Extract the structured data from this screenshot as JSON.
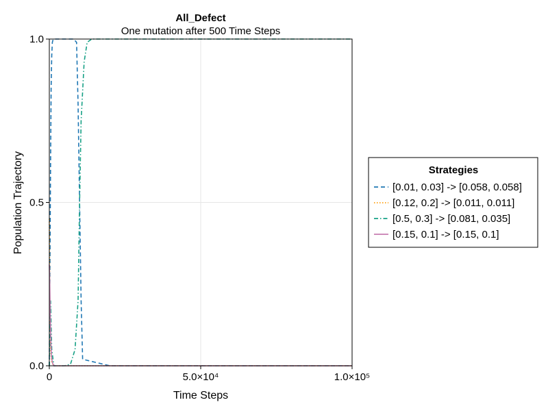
{
  "chart_data": {
    "type": "line",
    "title": "All_Defect",
    "subtitle": "One mutation after 500 Time Steps",
    "xlabel": "Time Steps",
    "ylabel": "Population Trajectory",
    "xlim": [
      0,
      100000
    ],
    "ylim": [
      0,
      1
    ],
    "xticks": [
      {
        "value": 0,
        "label": "0"
      },
      {
        "value": 50000,
        "label": "5.0×10⁴"
      },
      {
        "value": 100000,
        "label": "1.0×10⁵"
      }
    ],
    "yticks": [
      {
        "value": 0,
        "label": "0.0"
      },
      {
        "value": 0.5,
        "label": "0.5"
      },
      {
        "value": 1,
        "label": "1.0"
      }
    ],
    "grid": true,
    "legend": {
      "title": "Strategies",
      "placement": "right",
      "entries": [
        {
          "label": "[0.01, 0.03] -> [0.058, 0.058]",
          "color": "#1f77b4",
          "dash": "dashed"
        },
        {
          "label": "[0.12, 0.2] -> [0.011, 0.011]",
          "color": "#ff9f0e",
          "dash": "dotted"
        },
        {
          "label": "[0.5, 0.3] -> [0.081, 0.035]",
          "color": "#16a085",
          "dash": "dashdot"
        },
        {
          "label": "[0.15, 0.1] -> [0.15, 0.1]",
          "color": "#c77cb0",
          "dash": "solid"
        }
      ]
    },
    "series": [
      {
        "color": "#1f77b4",
        "dash": "dashed",
        "x": [
          0,
          200,
          400,
          600,
          800,
          1000,
          1300,
          1700,
          2200,
          3000,
          5000,
          8000,
          9000,
          9500,
          10000,
          10500,
          11000,
          20000,
          50000,
          100000
        ],
        "y": [
          0.0,
          0.3,
          0.6,
          0.85,
          0.95,
          0.99,
          1.0,
          1.0,
          1.0,
          1.0,
          1.0,
          1.0,
          0.99,
          0.8,
          0.5,
          0.2,
          0.02,
          0.0,
          0.0,
          0.0
        ]
      },
      {
        "color": "#ff9f0e",
        "dash": "dotted",
        "x": [
          0,
          100,
          200,
          400,
          800,
          1500,
          5000,
          20000,
          100000
        ],
        "y": [
          0.45,
          0.3,
          0.15,
          0.05,
          0.01,
          0.0,
          0.0,
          0.0,
          0.0
        ]
      },
      {
        "color": "#16a085",
        "dash": "dashdot",
        "x": [
          0,
          200,
          400,
          800,
          1500,
          5000,
          7000,
          8500,
          9500,
          10000,
          10500,
          11500,
          12500,
          14000,
          20000,
          50000,
          100000
        ],
        "y": [
          0.0,
          0.1,
          0.2,
          0.05,
          0.0,
          0.0,
          0.005,
          0.05,
          0.2,
          0.5,
          0.75,
          0.93,
          0.99,
          1.0,
          1.0,
          1.0,
          1.0
        ]
      },
      {
        "color": "#c77cb0",
        "dash": "solid",
        "x": [
          0,
          150,
          300,
          500,
          700,
          1000,
          1500,
          2500,
          100000
        ],
        "y": [
          0.31,
          0.25,
          0.16,
          0.08,
          0.03,
          0.01,
          0.0,
          0.0,
          0.0
        ]
      }
    ]
  }
}
